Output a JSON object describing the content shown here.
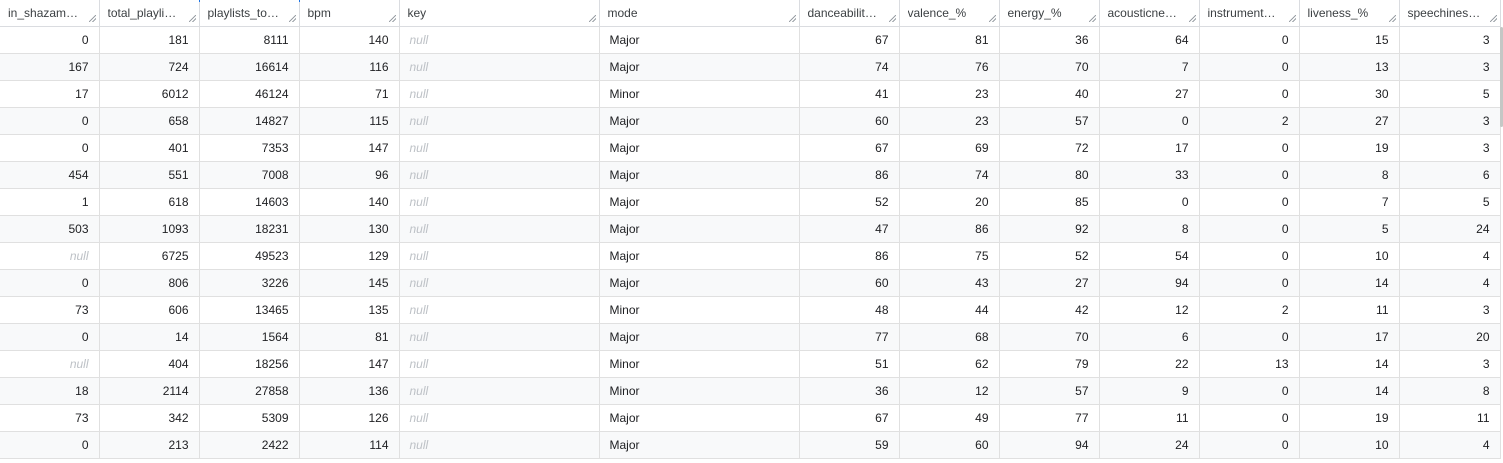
{
  "columns": [
    {
      "label": "in_shazam_c...",
      "type": "num"
    },
    {
      "label": "total_playlist...",
      "type": "num"
    },
    {
      "label": "playlists_tota...",
      "type": "num"
    },
    {
      "label": "bpm",
      "type": "num"
    },
    {
      "label": "key",
      "type": "txt"
    },
    {
      "label": "mode",
      "type": "txt"
    },
    {
      "label": "danceability_%",
      "type": "num"
    },
    {
      "label": "valence_%",
      "type": "num"
    },
    {
      "label": "energy_%",
      "type": "num"
    },
    {
      "label": "acousticness...",
      "type": "num"
    },
    {
      "label": "instrumental...",
      "type": "num"
    },
    {
      "label": "liveness_%",
      "type": "num"
    },
    {
      "label": "speechiness...",
      "type": "num"
    }
  ],
  "rows": [
    [
      "0",
      "181",
      "8111",
      "140",
      "null",
      "Major",
      "67",
      "81",
      "36",
      "64",
      "0",
      "15",
      "3"
    ],
    [
      "167",
      "724",
      "16614",
      "116",
      "null",
      "Major",
      "74",
      "76",
      "70",
      "7",
      "0",
      "13",
      "3"
    ],
    [
      "17",
      "6012",
      "46124",
      "71",
      "null",
      "Minor",
      "41",
      "23",
      "40",
      "27",
      "0",
      "30",
      "5"
    ],
    [
      "0",
      "658",
      "14827",
      "115",
      "null",
      "Major",
      "60",
      "23",
      "57",
      "0",
      "2",
      "27",
      "3"
    ],
    [
      "0",
      "401",
      "7353",
      "147",
      "null",
      "Major",
      "67",
      "69",
      "72",
      "17",
      "0",
      "19",
      "3"
    ],
    [
      "454",
      "551",
      "7008",
      "96",
      "null",
      "Major",
      "86",
      "74",
      "80",
      "33",
      "0",
      "8",
      "6"
    ],
    [
      "1",
      "618",
      "14603",
      "140",
      "null",
      "Major",
      "52",
      "20",
      "85",
      "0",
      "0",
      "7",
      "5"
    ],
    [
      "503",
      "1093",
      "18231",
      "130",
      "null",
      "Major",
      "47",
      "86",
      "92",
      "8",
      "0",
      "5",
      "24"
    ],
    [
      "null",
      "6725",
      "49523",
      "129",
      "null",
      "Major",
      "86",
      "75",
      "52",
      "54",
      "0",
      "10",
      "4"
    ],
    [
      "0",
      "806",
      "3226",
      "145",
      "null",
      "Major",
      "60",
      "43",
      "27",
      "94",
      "0",
      "14",
      "4"
    ],
    [
      "73",
      "606",
      "13465",
      "135",
      "null",
      "Minor",
      "48",
      "44",
      "42",
      "12",
      "2",
      "11",
      "3"
    ],
    [
      "0",
      "14",
      "1564",
      "81",
      "null",
      "Major",
      "77",
      "68",
      "70",
      "6",
      "0",
      "17",
      "20"
    ],
    [
      "null",
      "404",
      "18256",
      "147",
      "null",
      "Minor",
      "51",
      "62",
      "79",
      "22",
      "13",
      "14",
      "3"
    ],
    [
      "18",
      "2114",
      "27858",
      "136",
      "null",
      "Minor",
      "36",
      "12",
      "57",
      "9",
      "0",
      "14",
      "8"
    ],
    [
      "73",
      "342",
      "5309",
      "126",
      "null",
      "Major",
      "67",
      "49",
      "77",
      "11",
      "0",
      "19",
      "11"
    ],
    [
      "0",
      "213",
      "2422",
      "114",
      "null",
      "Major",
      "59",
      "60",
      "94",
      "24",
      "0",
      "10",
      "4"
    ]
  ],
  "null_text": "null"
}
